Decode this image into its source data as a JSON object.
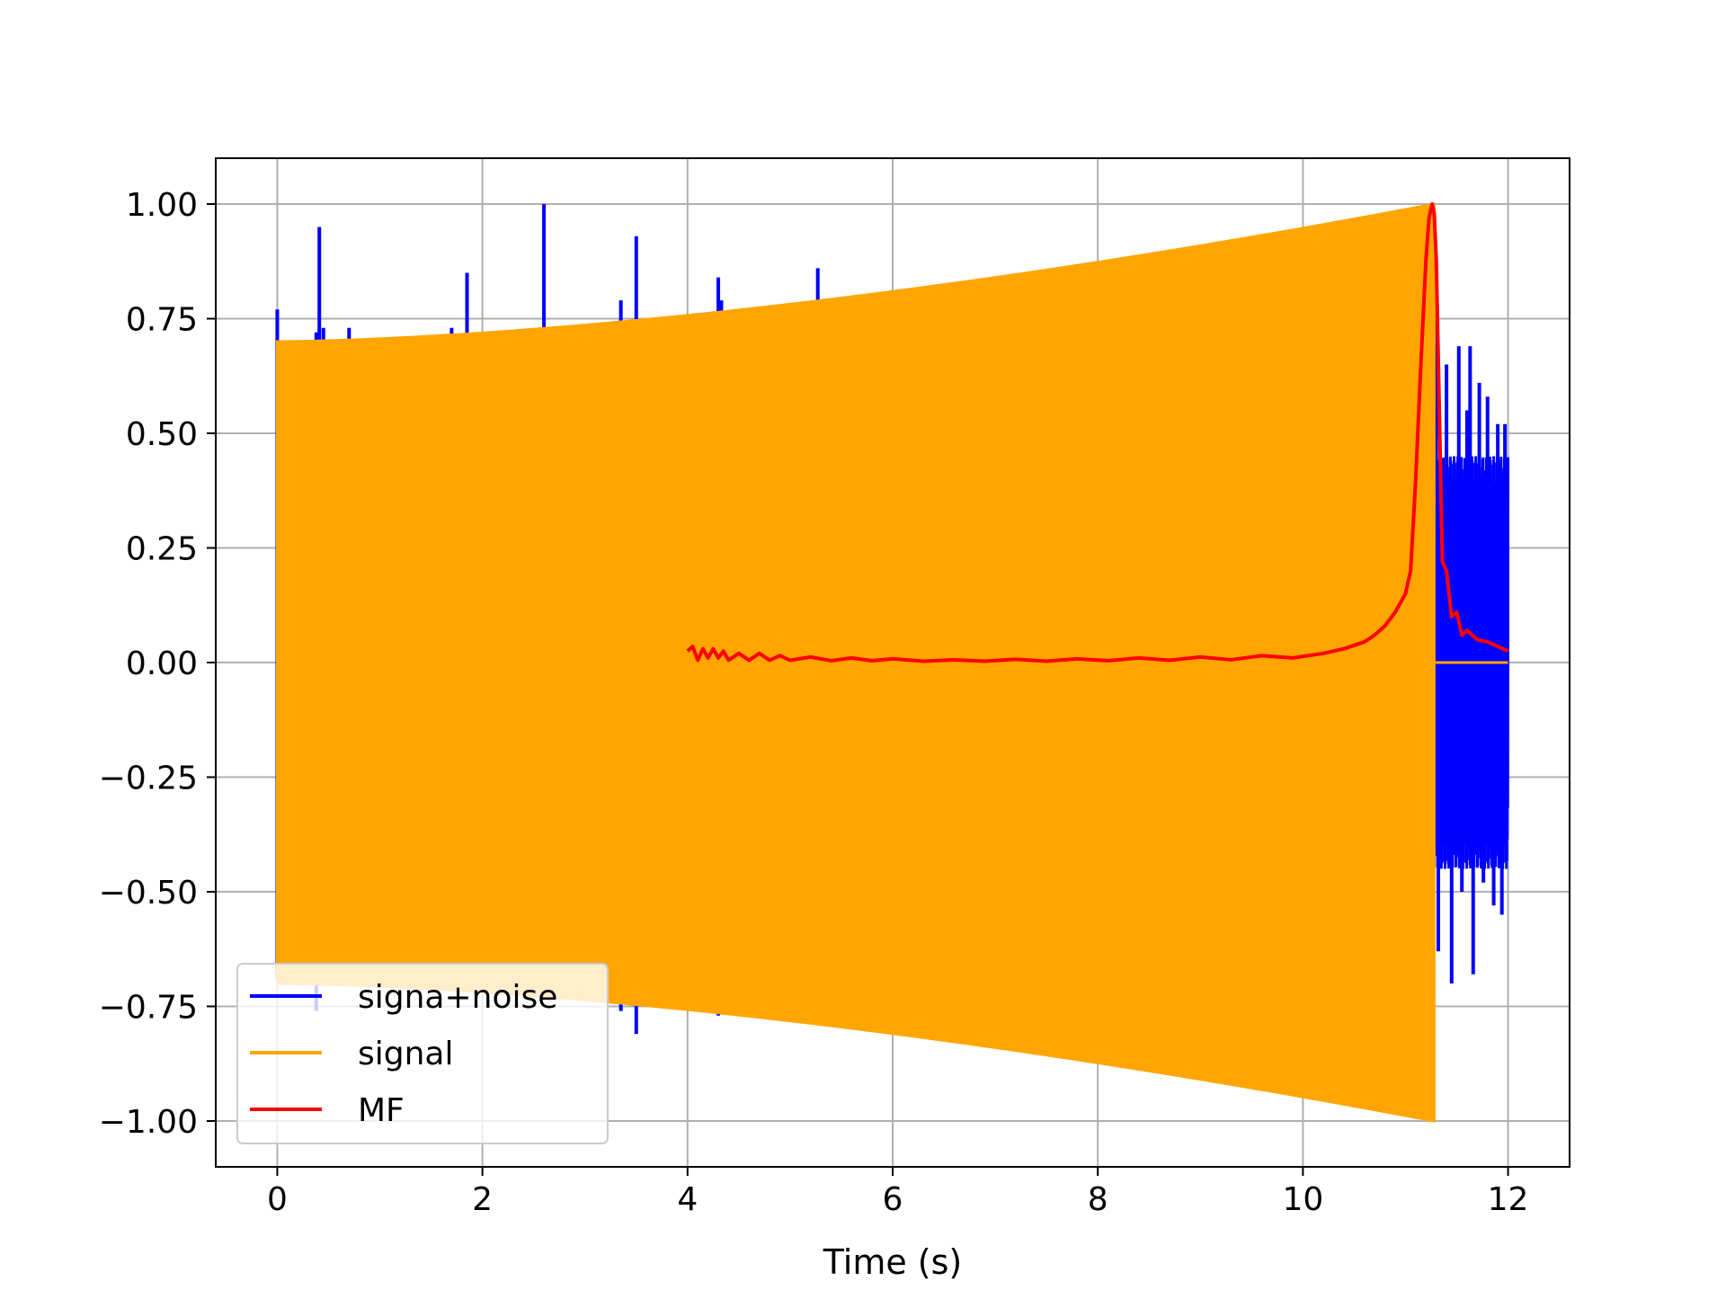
{
  "chart_data": {
    "type": "line",
    "title": "",
    "xlabel": "Time (s)",
    "ylabel": "",
    "xlim": [
      -0.6,
      12.6
    ],
    "ylim": [
      -1.1,
      1.1
    ],
    "grid": true,
    "legend_position": "lower-left",
    "x_ticks": [
      0,
      2,
      4,
      6,
      8,
      10,
      12
    ],
    "x_tick_labels": [
      "0",
      "2",
      "4",
      "6",
      "8",
      "10",
      "12"
    ],
    "y_ticks": [
      1.0,
      0.75,
      0.5,
      0.25,
      0.0,
      -0.25,
      -0.5,
      -0.75,
      -1.0
    ],
    "y_tick_labels": [
      "1.00",
      "0.75",
      "0.50",
      "0.25",
      "0.00",
      "−0.25",
      "−0.50",
      "−0.75",
      "−1.00"
    ],
    "series": [
      {
        "name": "signa+noise",
        "color": "#0000ff",
        "chirp_envelope": {
          "t_start": 0.0,
          "t_end": 11.28,
          "amp_start": 0.7,
          "amp_end": 1.0
        },
        "noise_only_range": [
          11.28,
          12.0
        ],
        "noise_amplitude": 0.45,
        "spikes": [
          {
            "x": 0.0,
            "y": 0.77
          },
          {
            "x": 0.0,
            "y": -0.69
          },
          {
            "x": 0.38,
            "y": 0.72
          },
          {
            "x": 0.41,
            "y": 0.95
          },
          {
            "x": 0.45,
            "y": 0.73
          },
          {
            "x": 0.7,
            "y": 0.73
          },
          {
            "x": 1.7,
            "y": 0.73
          },
          {
            "x": 1.85,
            "y": 0.85
          },
          {
            "x": 2.6,
            "y": 1.0
          },
          {
            "x": 3.35,
            "y": 0.79
          },
          {
            "x": 3.5,
            "y": 0.93
          },
          {
            "x": 4.3,
            "y": 0.84
          },
          {
            "x": 4.33,
            "y": 0.79
          },
          {
            "x": 5.27,
            "y": 0.86
          },
          {
            "x": 0.38,
            "y": -0.76
          },
          {
            "x": 3.35,
            "y": -0.76
          },
          {
            "x": 3.5,
            "y": -0.81
          },
          {
            "x": 4.3,
            "y": -0.77
          },
          {
            "x": 9.82,
            "y": -0.94
          },
          {
            "x": 11.3,
            "y": 0.76
          },
          {
            "x": 11.32,
            "y": -0.63
          },
          {
            "x": 11.4,
            "y": 0.65
          },
          {
            "x": 11.45,
            "y": -0.7
          },
          {
            "x": 11.52,
            "y": 0.69
          },
          {
            "x": 11.55,
            "y": -0.5
          },
          {
            "x": 11.6,
            "y": 0.55
          },
          {
            "x": 11.63,
            "y": 0.69
          },
          {
            "x": 11.66,
            "y": -0.68
          },
          {
            "x": 11.72,
            "y": 0.61
          },
          {
            "x": 11.76,
            "y": -0.48
          },
          {
            "x": 11.8,
            "y": 0.58
          },
          {
            "x": 11.86,
            "y": -0.53
          },
          {
            "x": 11.9,
            "y": 0.52
          },
          {
            "x": 11.94,
            "y": -0.55
          },
          {
            "x": 11.97,
            "y": 0.52
          }
        ]
      },
      {
        "name": "signal",
        "color": "#ffa500",
        "type": "chirp",
        "t_start": 0.0,
        "t_end": 11.28,
        "amp_start": 0.7,
        "amp_end": 1.0,
        "zero_after": [
          11.28,
          12.0
        ]
      },
      {
        "name": "MF",
        "color": "#ff0000",
        "x": [
          4.0,
          4.05,
          4.1,
          4.15,
          4.2,
          4.25,
          4.3,
          4.35,
          4.4,
          4.5,
          4.6,
          4.7,
          4.8,
          4.9,
          5.0,
          5.2,
          5.4,
          5.6,
          5.8,
          6.0,
          6.3,
          6.6,
          6.9,
          7.2,
          7.5,
          7.8,
          8.1,
          8.4,
          8.7,
          9.0,
          9.3,
          9.6,
          9.9,
          10.2,
          10.4,
          10.6,
          10.7,
          10.8,
          10.9,
          11.0,
          11.05,
          11.1,
          11.15,
          11.2,
          11.23,
          11.26,
          11.28,
          11.3,
          11.33,
          11.36,
          11.4,
          11.45,
          11.5,
          11.55,
          11.6,
          11.7,
          11.8,
          11.9,
          12.0
        ],
        "y": [
          0.025,
          0.035,
          0.005,
          0.03,
          0.01,
          0.03,
          0.01,
          0.025,
          0.005,
          0.02,
          0.005,
          0.02,
          0.005,
          0.015,
          0.005,
          0.012,
          0.004,
          0.01,
          0.004,
          0.008,
          0.003,
          0.006,
          0.003,
          0.007,
          0.003,
          0.008,
          0.004,
          0.01,
          0.005,
          0.012,
          0.006,
          0.015,
          0.01,
          0.02,
          0.03,
          0.045,
          0.06,
          0.08,
          0.11,
          0.15,
          0.2,
          0.4,
          0.65,
          0.88,
          0.97,
          1.0,
          0.98,
          0.88,
          0.55,
          0.22,
          0.2,
          0.1,
          0.11,
          0.06,
          0.07,
          0.05,
          0.045,
          0.035,
          0.025
        ]
      }
    ]
  }
}
